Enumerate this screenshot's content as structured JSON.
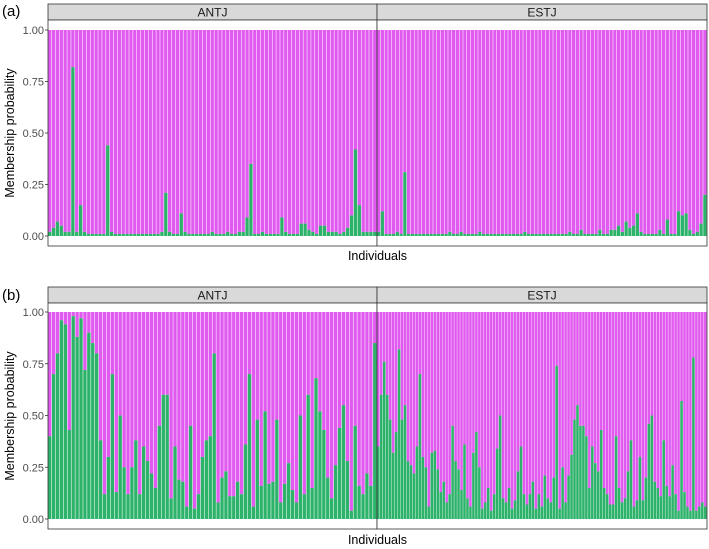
{
  "chart_data": [
    {
      "panel_label": "(a)",
      "type": "bar",
      "stacked": true,
      "xlabel": "Individuals",
      "ylabel": "Membership probability",
      "ylim": [
        0,
        1
      ],
      "yticks": [
        "0.00",
        "0.25",
        "0.50",
        "0.75",
        "1.00"
      ],
      "colors": {
        "cluster_1": "#2DB26A",
        "cluster_2": "#E15AF0"
      },
      "facets": [
        {
          "name": "ANTJ",
          "values": [
            0.02,
            0.04,
            0.07,
            0.05,
            0.02,
            0.02,
            0.82,
            0.02,
            0.15,
            0.02,
            0.01,
            0.01,
            0.01,
            0.01,
            0.01,
            0.44,
            0.02,
            0.01,
            0.01,
            0.01,
            0.01,
            0.01,
            0.01,
            0.01,
            0.01,
            0.01,
            0.01,
            0.01,
            0.01,
            0.02,
            0.21,
            0.02,
            0.01,
            0.01,
            0.11,
            0.02,
            0.01,
            0.01,
            0.01,
            0.01,
            0.01,
            0.01,
            0.02,
            0.01,
            0.01,
            0.01,
            0.02,
            0.01,
            0.01,
            0.02,
            0.02,
            0.09,
            0.35,
            0.01,
            0.01,
            0.02,
            0.01,
            0.01,
            0.01,
            0.01,
            0.09,
            0.02,
            0.01,
            0.01,
            0.01,
            0.06,
            0.06,
            0.03,
            0.02,
            0.01,
            0.05,
            0.05,
            0.02,
            0.02,
            0.02,
            0.01,
            0.02,
            0.04,
            0.1,
            0.42,
            0.15,
            0.02,
            0.02,
            0.02,
            0.02
          ]
        },
        {
          "name": "ESTJ",
          "values": [
            0.02,
            0.12,
            0.01,
            0.01,
            0.01,
            0.02,
            0.01,
            0.31,
            0.01,
            0.01,
            0.01,
            0.01,
            0.01,
            0.01,
            0.01,
            0.01,
            0.01,
            0.01,
            0.01,
            0.02,
            0.01,
            0.01,
            0.02,
            0.01,
            0.01,
            0.01,
            0.01,
            0.02,
            0.01,
            0.01,
            0.01,
            0.01,
            0.01,
            0.01,
            0.01,
            0.01,
            0.01,
            0.01,
            0.01,
            0.02,
            0.01,
            0.01,
            0.01,
            0.01,
            0.01,
            0.01,
            0.01,
            0.01,
            0.01,
            0.01,
            0.01,
            0.02,
            0.01,
            0.01,
            0.03,
            0.01,
            0.01,
            0.01,
            0.01,
            0.03,
            0.01,
            0.01,
            0.03,
            0.03,
            0.05,
            0.02,
            0.07,
            0.04,
            0.05,
            0.11,
            0.02,
            0.01,
            0.01,
            0.01,
            0.01,
            0.03,
            0.01,
            0.08,
            0.01,
            0.01,
            0.12,
            0.1,
            0.11,
            0.03,
            0.01,
            0.02,
            0.06,
            0.2
          ]
        }
      ]
    },
    {
      "panel_label": "(b)",
      "type": "bar",
      "stacked": true,
      "xlabel": "Individuals",
      "ylabel": "Membership probability",
      "ylim": [
        0,
        1
      ],
      "yticks": [
        "0.00",
        "0.25",
        "0.50",
        "0.75",
        "1.00"
      ],
      "colors": {
        "cluster_1": "#2DB26A",
        "cluster_2": "#E15AF0"
      },
      "facets": [
        {
          "name": "ANTJ",
          "values": [
            0.4,
            0.7,
            0.8,
            0.96,
            0.94,
            0.43,
            0.98,
            0.88,
            0.97,
            0.72,
            0.9,
            0.85,
            0.8,
            0.38,
            0.12,
            0.3,
            0.7,
            0.13,
            0.5,
            0.25,
            0.12,
            0.25,
            0.38,
            0.12,
            0.35,
            0.28,
            0.22,
            0.15,
            0.45,
            0.6,
            0.6,
            0.1,
            0.35,
            0.19,
            0.18,
            0.06,
            0.45,
            0.05,
            0.12,
            0.3,
            0.38,
            0.4,
            0.8,
            0.08,
            0.2,
            0.23,
            0.11,
            0.11,
            0.18,
            0.12,
            0.36,
            0.7,
            0.06,
            0.48,
            0.16,
            0.52,
            0.17,
            0.18,
            0.48,
            0.08,
            0.17,
            0.27,
            0.14,
            0.08,
            0.5,
            0.12,
            0.6,
            0.15,
            0.68,
            0.52,
            0.43,
            0.2,
            0.1,
            0.26,
            0.44,
            0.55,
            0.28,
            0.04,
            0.45,
            0.16,
            0.12,
            0.22,
            0.16,
            0.85
          ]
        },
        {
          "name": "ESTJ",
          "values": [
            0.35,
            0.6,
            0.76,
            0.6,
            0.48,
            0.32,
            0.42,
            0.82,
            0.48,
            0.55,
            0.28,
            0.26,
            0.22,
            0.35,
            0.7,
            0.3,
            0.25,
            0.06,
            0.32,
            0.33,
            0.24,
            0.13,
            0.18,
            0.08,
            0.12,
            0.45,
            0.28,
            0.24,
            0.14,
            0.36,
            0.1,
            0.06,
            0.32,
            0.42,
            0.25,
            0.05,
            0.08,
            0.15,
            0.04,
            0.12,
            0.34,
            0.5,
            0.1,
            0.08,
            0.15,
            0.05,
            0.09,
            0.23,
            0.35,
            0.12,
            0.07,
            0.12,
            0.18,
            0.05,
            0.12,
            0.06,
            0.21,
            0.1,
            0.08,
            0.2,
            0.74,
            0.05,
            0.25,
            0.08,
            0.21,
            0.31,
            0.48,
            0.55,
            0.45,
            0.45,
            0.4,
            0.15,
            0.35,
            0.27,
            0.23,
            0.43,
            0.15,
            0.12,
            0.07,
            0.07,
            0.4,
            0.15,
            0.08,
            0.1,
            0.23,
            0.38,
            0.06,
            0.09,
            0.3,
            0.09,
            0.2,
            0.46,
            0.5,
            0.18,
            0.15,
            0.11,
            0.38,
            0.16,
            0.11,
            0.26,
            0.12,
            0.04,
            0.57,
            0.13,
            0.06,
            0.04,
            0.78,
            0.04,
            0.06,
            0.08,
            0.06
          ]
        }
      ]
    }
  ]
}
